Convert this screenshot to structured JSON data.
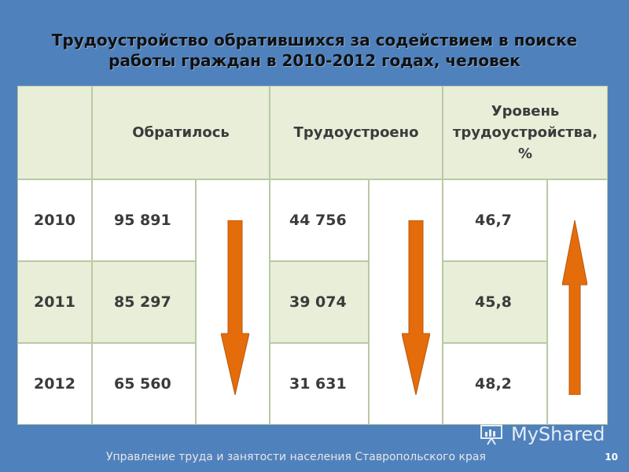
{
  "title_line1": "Трудоустройство обратившихся за содействием в поиске",
  "title_line2": "работы граждан в 2010-2012 годах, человек",
  "table": {
    "headers": {
      "applied": "Обратилось",
      "employed": "Трудоустроено",
      "rate_line1": "Уровень",
      "rate_line2": "трудоустройства,",
      "rate_line3": "%"
    },
    "rows": [
      {
        "year": "2010",
        "applied": "95 891",
        "employed": "44 756",
        "rate": "46,7"
      },
      {
        "year": "2011",
        "applied": "85 297",
        "employed": "39 074",
        "rate": "45,8"
      },
      {
        "year": "2012",
        "applied": "65 560",
        "employed": "31 631",
        "rate": "48,2"
      }
    ],
    "trend_arrows": {
      "applied": "down",
      "employed": "down",
      "rate": "up"
    },
    "colors": {
      "arrow": "#e46c0a",
      "arrow_edge": "#b65a12",
      "shaded_cell": "#e8eed8",
      "border": "#b9c9a4"
    }
  },
  "footer_text": "Управление труда и занятости населения Ставропольского края",
  "page_number": "10",
  "watermark": "MyShared"
}
